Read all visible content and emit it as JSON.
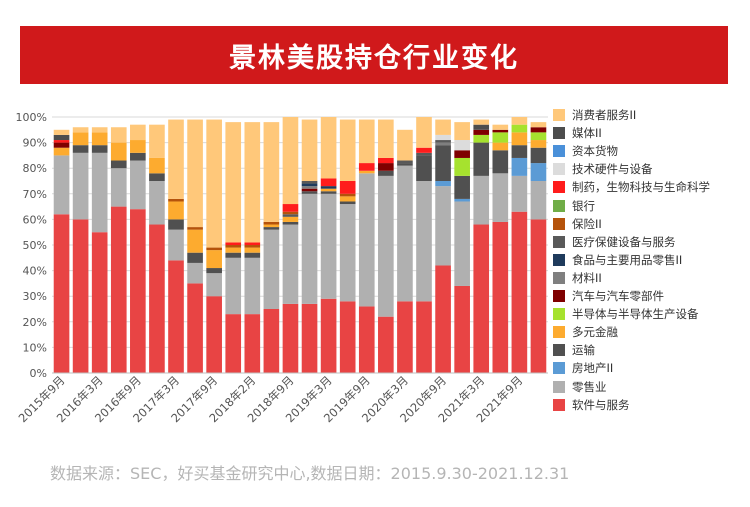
{
  "header": {
    "title": "景林美股持仓行业变化"
  },
  "footer": {
    "source": "数据来源：SEC，好买基金研究中心,数据日期：2015.9.30-2021.12.31"
  },
  "chart_data": {
    "type": "bar",
    "stacked": true,
    "title": "景林美股持仓行业变化",
    "ylim": [
      0,
      100
    ],
    "y_ticks": [
      "0%",
      "10%",
      "20%",
      "30%",
      "40%",
      "50%",
      "60%",
      "70%",
      "80%",
      "90%",
      "100%"
    ],
    "y_tick_values": [
      0,
      10,
      20,
      30,
      40,
      50,
      60,
      70,
      80,
      90,
      100
    ],
    "x_labels": [
      "2015年9月",
      "2016年3月",
      "2016年9月",
      "2017年3月",
      "2017年9月",
      "2018年2月",
      "2018年9月",
      "2019年3月",
      "2019年9月",
      "2020年3月",
      "2020年9月",
      "2021年3月",
      "2021年9月"
    ],
    "x_label_bar_index": [
      0,
      2,
      4,
      6,
      8,
      10,
      12,
      14,
      16,
      18,
      20,
      22,
      24
    ],
    "legend_position": "right",
    "series": [
      {
        "name": "软件与服务",
        "color": "#e84444",
        "values": [
          62,
          60,
          55,
          65,
          64,
          58,
          44,
          35,
          30,
          23,
          23,
          25,
          27,
          27,
          29,
          28,
          26,
          22,
          28,
          28,
          42,
          34,
          58,
          59,
          63,
          60
        ]
      },
      {
        "name": "零售业",
        "color": "#b0b0b0",
        "values": [
          23,
          26,
          31,
          15,
          19,
          17,
          12,
          8,
          9,
          22,
          22,
          31,
          31,
          43,
          41,
          38,
          52,
          55,
          53,
          47,
          31,
          33,
          19,
          19,
          14,
          15
        ]
      },
      {
        "name": "房地产II",
        "color": "#5b9bd5",
        "values": [
          0,
          0,
          0,
          0,
          0,
          0,
          0,
          0,
          0,
          0,
          0,
          0,
          0,
          0,
          0,
          0,
          0,
          0,
          0,
          0,
          2,
          1,
          0,
          0,
          7,
          7
        ]
      },
      {
        "name": "运输",
        "color": "#505050",
        "values": [
          0,
          3,
          3,
          3,
          3,
          3,
          4,
          4,
          2,
          2,
          2,
          1,
          1,
          1,
          1,
          1,
          0,
          2,
          1,
          10,
          14,
          9,
          13,
          9,
          5,
          6
        ]
      },
      {
        "name": "多元金融",
        "color": "#fdab2f",
        "values": [
          3,
          5,
          5,
          7,
          5,
          6,
          7,
          9,
          7,
          2,
          2,
          1,
          2,
          0,
          1,
          2,
          1,
          0,
          0,
          0,
          0,
          0,
          0,
          3,
          5,
          3
        ]
      },
      {
        "name": "半导体与半导体生产设备",
        "color": "#a6e22e",
        "values": [
          0,
          0,
          0,
          0,
          0,
          0,
          0,
          0,
          0,
          0,
          0,
          0,
          0,
          0,
          0,
          0,
          0,
          0,
          0,
          0,
          0,
          7,
          3,
          4,
          3,
          3
        ]
      },
      {
        "name": "汽车与汽车零部件",
        "color": "#7f0000",
        "values": [
          2,
          0,
          0,
          0,
          0,
          0,
          0,
          0,
          0,
          0,
          0,
          0,
          0,
          1,
          0,
          0,
          0,
          3,
          0,
          0,
          0,
          3,
          2,
          1,
          0,
          2
        ]
      },
      {
        "name": "材料II",
        "color": "#7f7f7f",
        "values": [
          0,
          0,
          0,
          0,
          0,
          0,
          0,
          0,
          0,
          0,
          0,
          0,
          0,
          1,
          0,
          0,
          0,
          0,
          0,
          0,
          1,
          0,
          0,
          0,
          0,
          0
        ]
      },
      {
        "name": "食品与主要用品零售II",
        "color": "#1f3b5c",
        "values": [
          0,
          0,
          0,
          0,
          0,
          0,
          0,
          0,
          0,
          0,
          0,
          0,
          0,
          1,
          1,
          0,
          0,
          0,
          0,
          0,
          0,
          0,
          0,
          0,
          0,
          0
        ]
      },
      {
        "name": "医疗保健设备与服务",
        "color": "#595959",
        "values": [
          0,
          0,
          0,
          0,
          0,
          0,
          0,
          0,
          0,
          0,
          0,
          0,
          1,
          1,
          0,
          0,
          0,
          0,
          1,
          1,
          1,
          0,
          0,
          0,
          0,
          0
        ]
      },
      {
        "name": "保险II",
        "color": "#b5530b",
        "values": [
          0,
          0,
          0,
          0,
          0,
          0,
          1,
          1,
          1,
          1,
          1,
          1,
          1,
          0,
          0,
          1,
          0,
          0,
          0,
          0,
          0,
          0,
          0,
          0,
          0,
          0
        ]
      },
      {
        "name": "银行",
        "color": "#70ad47",
        "values": [
          0,
          0,
          0,
          0,
          0,
          0,
          0,
          0,
          0,
          0,
          0,
          0,
          0,
          0,
          0,
          0,
          0,
          0,
          0,
          0,
          0,
          0,
          0,
          0,
          0,
          0
        ]
      },
      {
        "name": "制药，生物科技与生命科学",
        "color": "#ff1c1c",
        "values": [
          1,
          0,
          0,
          0,
          0,
          0,
          0,
          0,
          0,
          1,
          1,
          0,
          3,
          0,
          3,
          5,
          3,
          2,
          0,
          2,
          0,
          0,
          0,
          0,
          0,
          0
        ]
      },
      {
        "name": "技术硬件与设备",
        "color": "#dcdcdc",
        "values": [
          0,
          0,
          0,
          0,
          0,
          0,
          0,
          0,
          0,
          0,
          0,
          0,
          0,
          0,
          0,
          0,
          0,
          0,
          0,
          0,
          2,
          4,
          0,
          0,
          0,
          0
        ]
      },
      {
        "name": "资本货物",
        "color": "#4a90d9",
        "values": [
          0,
          0,
          0,
          0,
          0,
          0,
          0,
          0,
          0,
          0,
          0,
          0,
          0,
          0,
          0,
          0,
          0,
          0,
          0,
          0,
          0,
          0,
          0,
          0,
          0,
          0
        ]
      },
      {
        "name": "媒体II",
        "color": "#4d4d4d",
        "values": [
          2,
          0,
          0,
          0,
          0,
          0,
          0,
          0,
          0,
          0,
          0,
          0,
          0,
          0,
          0,
          0,
          0,
          0,
          0,
          0,
          0,
          0,
          2,
          0,
          0,
          0
        ]
      },
      {
        "name": "消费者服务II",
        "color": "#ffc87a",
        "values": [
          2,
          2,
          2,
          6,
          6,
          13,
          31,
          42,
          50,
          47,
          47,
          39,
          34,
          24,
          24,
          24,
          17,
          15,
          12,
          12,
          6,
          7,
          2,
          2,
          3,
          2
        ]
      }
    ]
  }
}
